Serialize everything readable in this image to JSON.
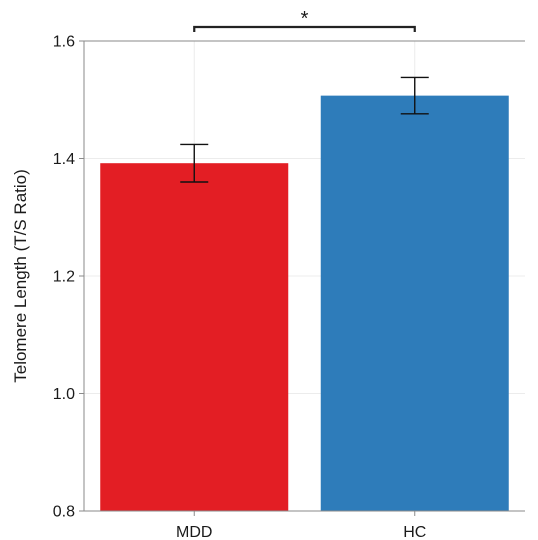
{
  "chart_data": {
    "type": "bar",
    "title": "",
    "xlabel": "",
    "ylabel": "Telomere Length (T/S Ratio)",
    "ylim": [
      0.8,
      1.6
    ],
    "yticks": [
      "0.8",
      "1.0",
      "1.2",
      "1.4",
      "1.6"
    ],
    "categories": [
      "MDD",
      "HC"
    ],
    "values": [
      1.392,
      1.507
    ],
    "error": [
      0.032,
      0.031
    ],
    "colors": [
      "#e31e24",
      "#2e7cba"
    ],
    "grid": true,
    "significance": {
      "between": [
        "MDD",
        "HC"
      ],
      "label": "*"
    }
  }
}
